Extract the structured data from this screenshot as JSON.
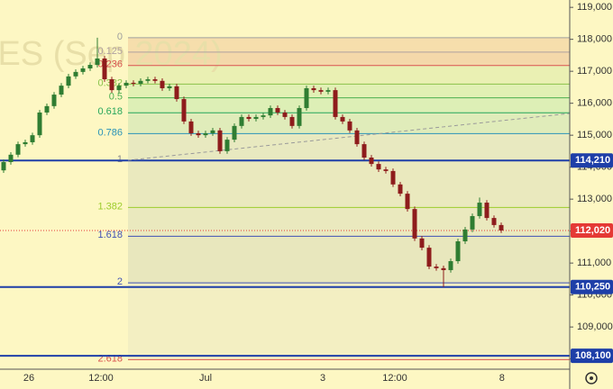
{
  "chart_data": {
    "type": "candlestick",
    "watermark": "RES (Sep 2024)",
    "up_color": "#2f7d32",
    "down_color": "#8e1c1c",
    "ylim": [
      107680,
      119230
    ],
    "yticks": [
      {
        "value": 108000,
        "label": "108,000"
      },
      {
        "value": 109000,
        "label": "109,000"
      },
      {
        "value": 110000,
        "label": "110,000"
      },
      {
        "value": 111000,
        "label": "111,000"
      },
      {
        "value": 112000,
        "label": "112,000"
      },
      {
        "value": 113000,
        "label": "113,000"
      },
      {
        "value": 114000,
        "label": "114,000"
      },
      {
        "value": 115000,
        "label": "115,000"
      },
      {
        "value": 116000,
        "label": "116,000"
      },
      {
        "value": 117000,
        "label": "117,000"
      },
      {
        "value": 118000,
        "label": "118,000"
      },
      {
        "value": 119000,
        "label": "119,000"
      }
    ],
    "xticks": [
      {
        "value": 3.5,
        "label": "26"
      },
      {
        "value": 13.5,
        "label": "12:00"
      },
      {
        "value": 28,
        "label": "Jul"
      },
      {
        "value": 44.25,
        "label": "3"
      },
      {
        "value": 54.25,
        "label": "12:00"
      },
      {
        "value": 69.1,
        "label": "8"
      }
    ],
    "fib_levels": [
      {
        "label": "0",
        "value": 118050,
        "color": "#9e9e9e",
        "fill": "#f4d9a8"
      },
      {
        "label": "0.125",
        "value": 117600,
        "color": "#b0a0a0",
        "fill": "#f4d9a8"
      },
      {
        "label": "0.236",
        "value": 117180,
        "color": "#d9534f",
        "fill": "#f2d2a6"
      },
      {
        "label": "0.382",
        "value": 116600,
        "color": "#8bc34a",
        "fill": "#e6efb0"
      },
      {
        "label": "0.5",
        "value": 116170,
        "color": "#4caf50",
        "fill": "#dcefb2"
      },
      {
        "label": "0.618",
        "value": 115700,
        "color": "#26a65b",
        "fill": "#d7edb4"
      },
      {
        "label": "0.786",
        "value": 115050,
        "color": "#2a93b8",
        "fill": "#dbeab8"
      },
      {
        "label": "1",
        "value": 114210,
        "color": "#8a8a8a",
        "fill": "#e4e6bf"
      },
      {
        "label": "1.382",
        "value": 112740,
        "color": "#9ccc2c",
        "fill": "#e6e6bd"
      },
      {
        "label": "1.618",
        "value": 111840,
        "color": "#3f51b5",
        "fill": "#e6e6bd"
      },
      {
        "label": "2",
        "value": 110380,
        "color": "#3f51b5",
        "fill": "#e4e4bc"
      },
      {
        "label": "2.618",
        "value": 107980,
        "color": "#d9534f",
        "fill": "#f1edc2"
      }
    ],
    "price_lines": [
      {
        "value": 114210,
        "label": "114,210",
        "color": "#1e3fa8"
      },
      {
        "value": 112020,
        "label": "112,020",
        "color": "#e53935"
      },
      {
        "value": 110250,
        "label": "110,250",
        "color": "#1e3fa8"
      },
      {
        "value": 108100,
        "label": "108,100",
        "color": "#1e3fa8"
      }
    ],
    "open": [
      113900,
      114160,
      114390,
      114720,
      114780,
      115000,
      115710,
      115910,
      116270,
      116550,
      116840,
      116980,
      117090,
      117200,
      117400,
      116750,
      116410,
      116550,
      116640,
      116610,
      116700,
      116750,
      116700,
      116470,
      116530,
      116130,
      115430,
      115060,
      115000,
      115060,
      115150,
      114500,
      114860,
      115290,
      115570,
      115510,
      115570,
      115620,
      115850,
      115710,
      115570,
      115290,
      115850,
      116470,
      116410,
      116360,
      116410,
      115570,
      115430,
      115150,
      114720,
      114300,
      114100,
      113930,
      113880,
      113460,
      113170,
      112690,
      111770,
      111480,
      110890,
      110840,
      110780,
      111060,
      111680,
      112050,
      112470,
      112890,
      112410,
      112190
    ],
    "high": [
      114240,
      114470,
      114800,
      114860,
      115080,
      115790,
      115990,
      116350,
      116630,
      116920,
      117060,
      117170,
      117280,
      118050,
      117480,
      116830,
      116630,
      116720,
      116720,
      116780,
      116830,
      116830,
      116780,
      116610,
      116610,
      116210,
      115510,
      115140,
      115140,
      115230,
      115230,
      114940,
      115370,
      115650,
      115650,
      115650,
      115700,
      115930,
      115930,
      115790,
      115650,
      115930,
      116550,
      116550,
      116490,
      116490,
      116490,
      115650,
      115510,
      115230,
      114800,
      114380,
      114180,
      114010,
      113960,
      113540,
      113250,
      112770,
      111850,
      111560,
      110970,
      110920,
      111140,
      111760,
      112130,
      112550,
      113050,
      112970,
      112490,
      112270
    ],
    "low": [
      113820,
      114080,
      114310,
      114640,
      114700,
      114920,
      115630,
      115830,
      116190,
      116470,
      116760,
      116900,
      117010,
      117120,
      116670,
      116330,
      116330,
      116470,
      116530,
      116530,
      116620,
      116620,
      116390,
      116390,
      116050,
      115350,
      114980,
      114920,
      114920,
      114980,
      114420,
      114420,
      114780,
      115210,
      115430,
      115430,
      115490,
      115540,
      115630,
      115490,
      115210,
      115210,
      115770,
      116330,
      116280,
      116280,
      115490,
      115350,
      115070,
      114640,
      114220,
      114020,
      113850,
      113800,
      113380,
      113090,
      112610,
      111690,
      111400,
      110810,
      110760,
      110250,
      110700,
      110980,
      111600,
      111970,
      112390,
      112330,
      112110,
      111940
    ],
    "close": [
      114160,
      114390,
      114720,
      114780,
      115000,
      115710,
      115910,
      116270,
      116550,
      116840,
      116980,
      117090,
      117200,
      117400,
      116750,
      116410,
      116550,
      116640,
      116610,
      116700,
      116750,
      116700,
      116470,
      116530,
      116130,
      115430,
      115060,
      115000,
      115060,
      115150,
      114500,
      114860,
      115290,
      115570,
      115510,
      115570,
      115620,
      115850,
      115710,
      115570,
      115290,
      115850,
      116470,
      116410,
      116360,
      116410,
      115570,
      115430,
      115150,
      114720,
      114300,
      114100,
      113930,
      113880,
      113460,
      113170,
      112690,
      111770,
      111480,
      110890,
      110840,
      110780,
      111060,
      111680,
      112050,
      112470,
      112890,
      112410,
      112190,
      112020
    ]
  }
}
